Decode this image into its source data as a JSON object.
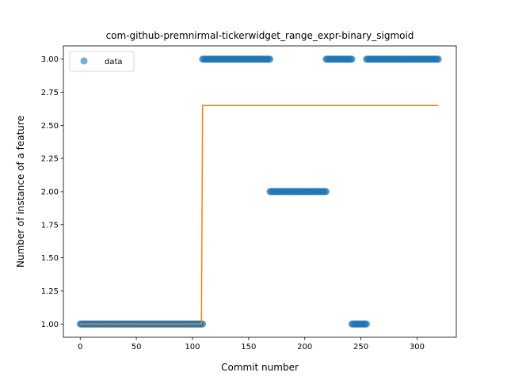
{
  "chart_data": {
    "type": "scatter",
    "title": "com-github-premnirmal-tickerwidget_range_expr-binary_sigmoid",
    "xlabel": "Commit number",
    "ylabel": "Number of instance of a feature",
    "xlim": [
      -15,
      335
    ],
    "ylim": [
      0.9,
      3.1
    ],
    "xticks": [
      0,
      50,
      100,
      150,
      200,
      250,
      300
    ],
    "yticks": [
      1.0,
      1.25,
      1.5,
      1.75,
      2.0,
      2.25,
      2.5,
      2.75,
      3.0
    ],
    "ytick_labels": [
      "1.00",
      "1.25",
      "1.50",
      "1.75",
      "2.00",
      "2.25",
      "2.50",
      "2.75",
      "3.00"
    ],
    "legend": {
      "placement": "top-left",
      "entries": [
        "data"
      ]
    },
    "grid": false,
    "series": [
      {
        "name": "data",
        "kind": "scatter",
        "color": "#1f77b4",
        "segments": [
          {
            "x_start": 0,
            "x_end": 109,
            "y": 1
          },
          {
            "x_start": 109,
            "x_end": 169,
            "y": 3
          },
          {
            "x_start": 169,
            "x_end": 219,
            "y": 2
          },
          {
            "x_start": 219,
            "x_end": 242,
            "y": 3
          },
          {
            "x_start": 242,
            "x_end": 255,
            "y": 1
          },
          {
            "x_start": 255,
            "x_end": 319,
            "y": 3
          }
        ]
      },
      {
        "kind": "line",
        "color": "#ff7f0e",
        "points": [
          [
            0,
            1.0
          ],
          [
            108,
            1.0
          ],
          [
            109,
            2.65
          ],
          [
            319,
            2.65
          ]
        ]
      }
    ]
  }
}
